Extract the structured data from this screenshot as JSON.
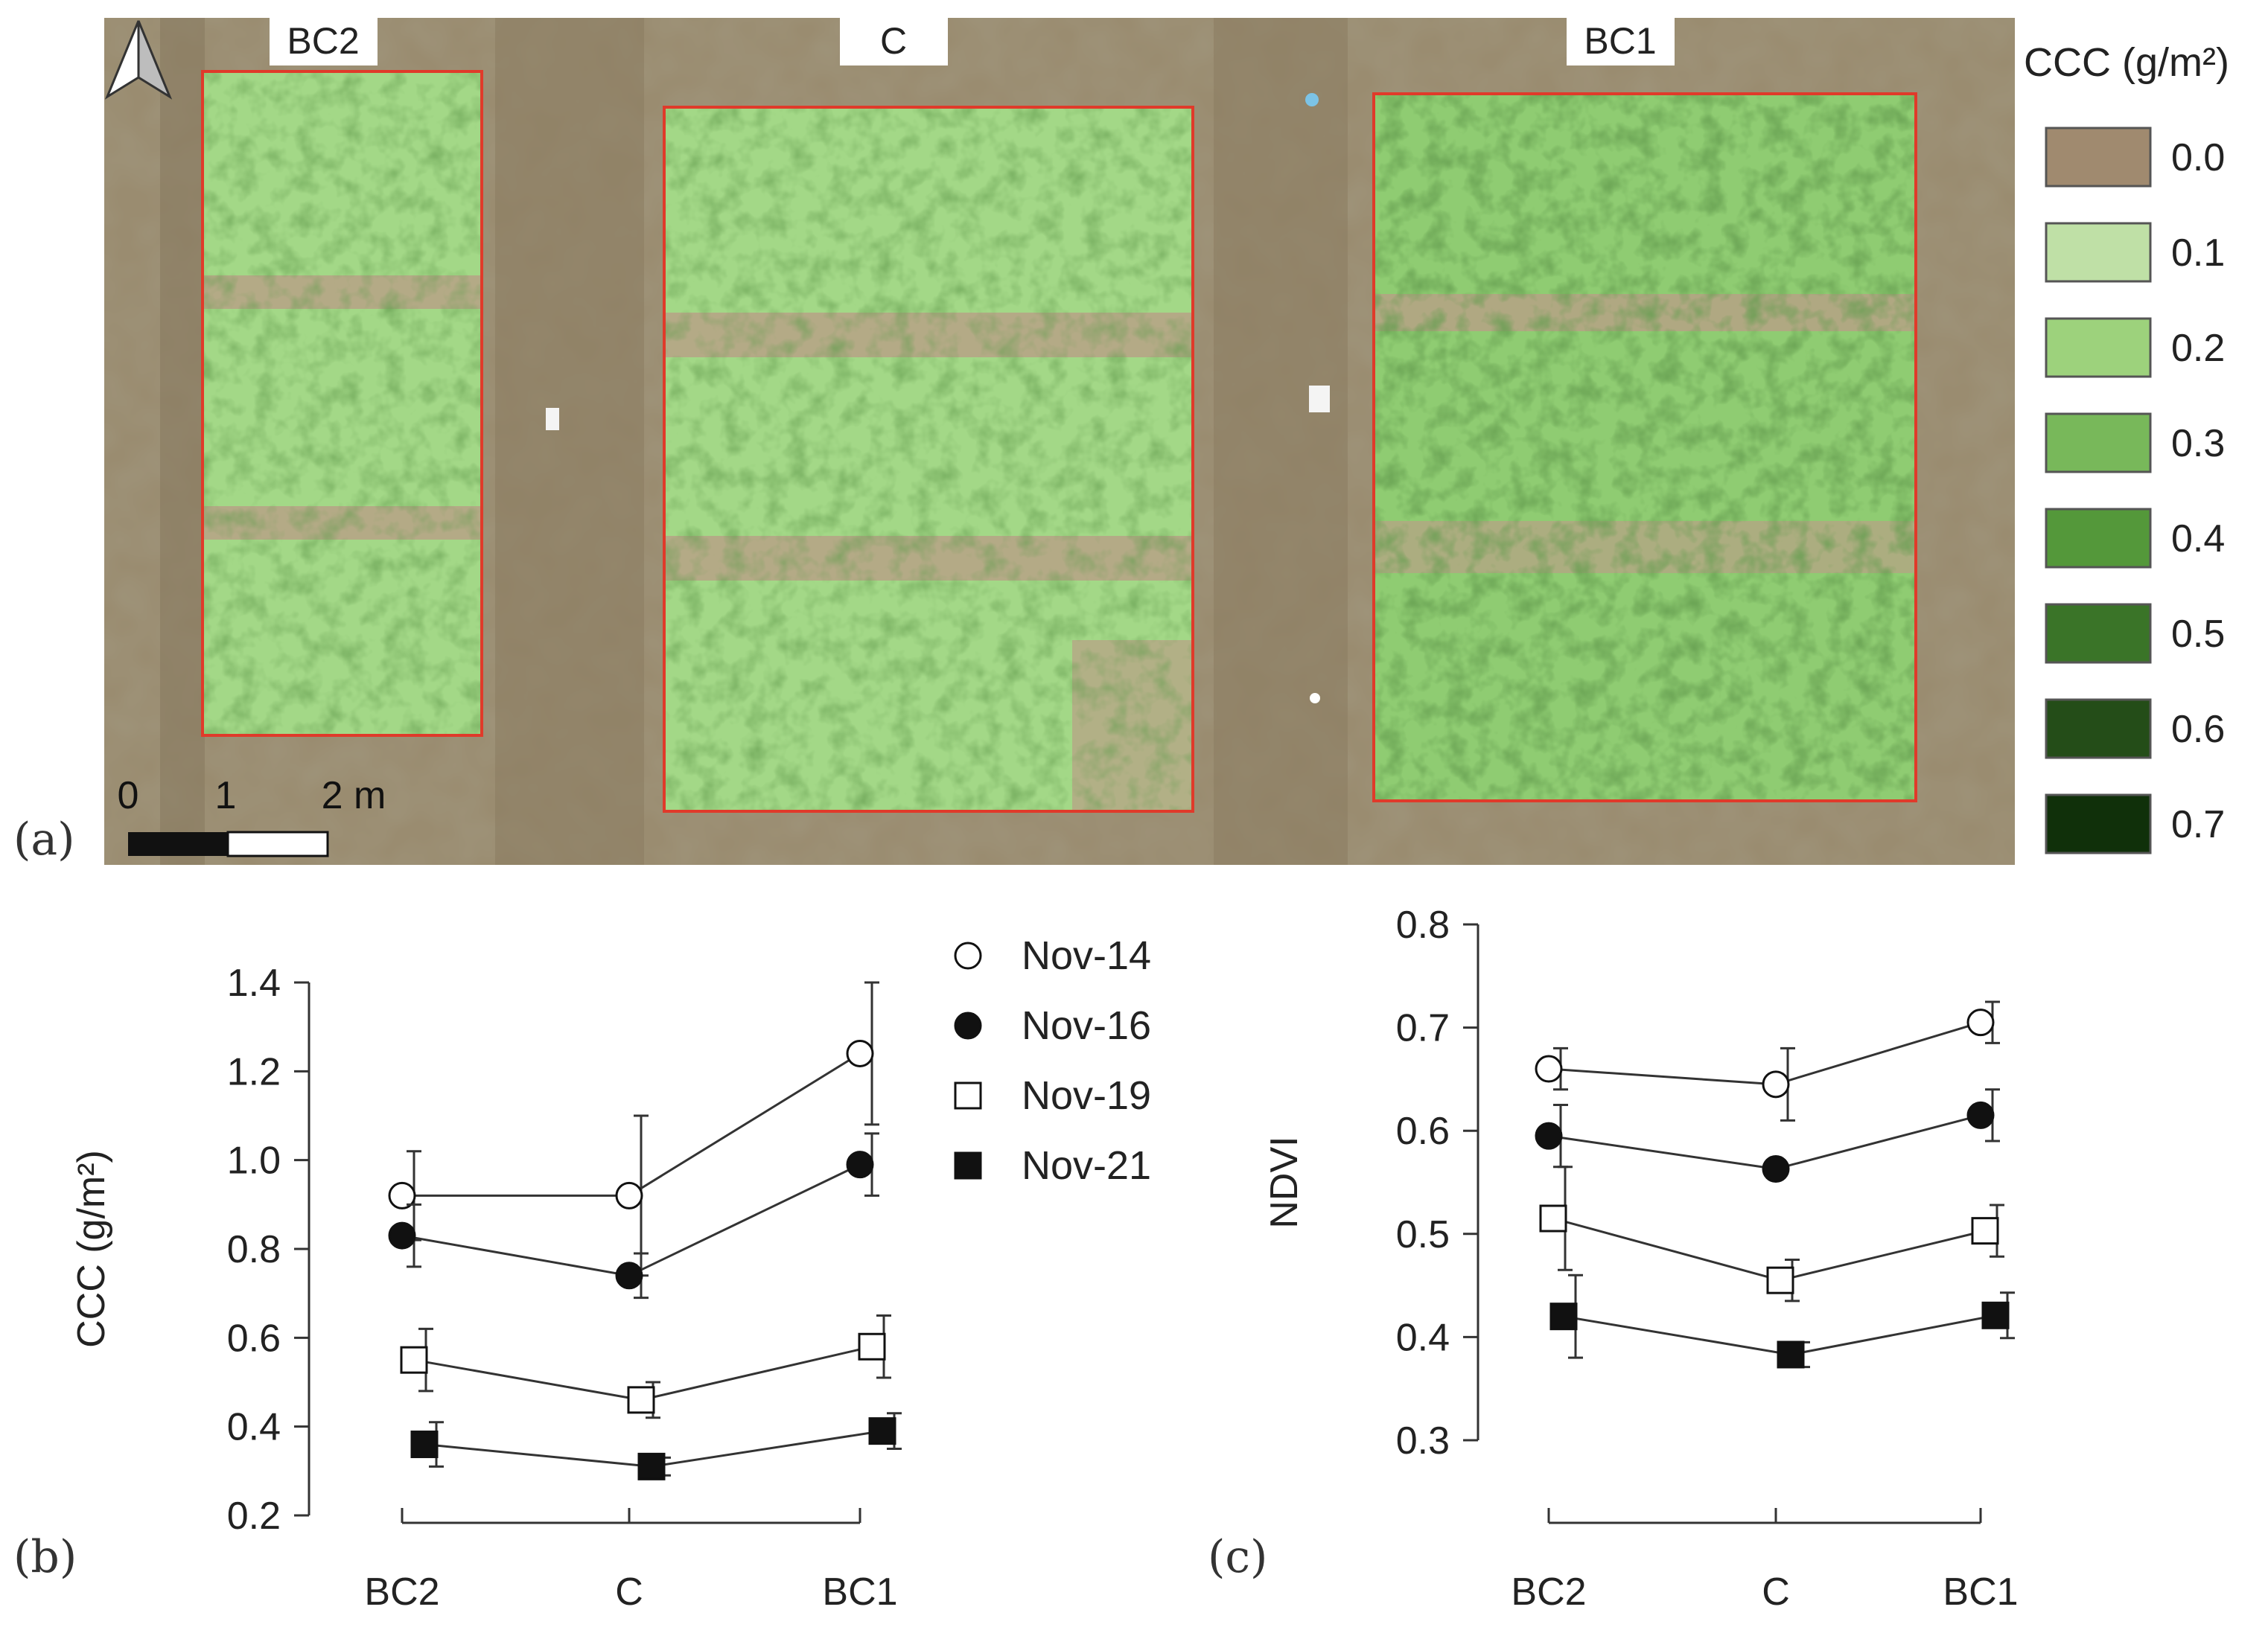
{
  "panel_a": {
    "tag": "(a)",
    "plots": [
      {
        "label": "BC2"
      },
      {
        "label": "C"
      },
      {
        "label": "BC1"
      }
    ],
    "north_arrow": "north-arrow-icon",
    "scalebar": {
      "labels": [
        "0",
        "1",
        "2 m"
      ]
    },
    "colorbar": {
      "title": "CCC (g/m²)",
      "entries": [
        {
          "label": "0.0",
          "color": "#a08a6f"
        },
        {
          "label": "0.1",
          "color": "#bfe0a6"
        },
        {
          "label": "0.2",
          "color": "#9dd27c"
        },
        {
          "label": "0.3",
          "color": "#78b85a"
        },
        {
          "label": "0.4",
          "color": "#54983a"
        },
        {
          "label": "0.5",
          "color": "#3a7428"
        },
        {
          "label": "0.6",
          "color": "#244d18"
        },
        {
          "label": "0.7",
          "color": "#10300a"
        }
      ]
    }
  },
  "legend": {
    "entries": [
      {
        "label": "Nov-14",
        "marker": "open-circle"
      },
      {
        "label": "Nov-16",
        "marker": "filled-circle"
      },
      {
        "label": "Nov-19",
        "marker": "open-square"
      },
      {
        "label": "Nov-21",
        "marker": "filled-square"
      }
    ]
  },
  "chart_data": [
    {
      "panel": "(b)",
      "type": "line",
      "categories": [
        "BC2",
        "C",
        "BC1"
      ],
      "ylabel": "CCC (g/m²)",
      "xlabel": "",
      "ylim": [
        0.2,
        1.4
      ],
      "yticks": [
        "0.2",
        "0.4",
        "0.6",
        "0.8",
        "1.0",
        "1.2",
        "1.4"
      ],
      "grid": false,
      "series": [
        {
          "name": "Nov-14",
          "marker": "open-circle",
          "values": [
            0.92,
            0.92,
            1.24
          ],
          "err": [
            0.1,
            0.18,
            0.16
          ]
        },
        {
          "name": "Nov-16",
          "marker": "filled-circle",
          "values": [
            0.83,
            0.74,
            0.99
          ],
          "err": [
            0.07,
            0.05,
            0.07
          ]
        },
        {
          "name": "Nov-19",
          "marker": "open-square",
          "values": [
            0.55,
            0.46,
            0.58
          ],
          "err": [
            0.07,
            0.04,
            0.07
          ]
        },
        {
          "name": "Nov-21",
          "marker": "filled-square",
          "values": [
            0.36,
            0.31,
            0.39
          ],
          "err": [
            0.05,
            0.02,
            0.04
          ]
        }
      ]
    },
    {
      "panel": "(c)",
      "type": "line",
      "categories": [
        "BC2",
        "C",
        "BC1"
      ],
      "ylabel": "NDVI",
      "xlabel": "",
      "ylim": [
        0.3,
        0.8
      ],
      "yticks": [
        "0.3",
        "0.4",
        "0.5",
        "0.6",
        "0.7",
        "0.8"
      ],
      "grid": false,
      "series": [
        {
          "name": "Nov-14",
          "marker": "open-circle",
          "values": [
            0.66,
            0.645,
            0.705
          ],
          "err": [
            0.02,
            0.035,
            0.02
          ]
        },
        {
          "name": "Nov-16",
          "marker": "filled-circle",
          "values": [
            0.595,
            0.563,
            0.615
          ],
          "err": [
            0.03,
            0.0,
            0.025
          ]
        },
        {
          "name": "Nov-19",
          "marker": "open-square",
          "values": [
            0.515,
            0.455,
            0.503
          ],
          "err": [
            0.05,
            0.02,
            0.025
          ]
        },
        {
          "name": "Nov-21",
          "marker": "filled-square",
          "values": [
            0.42,
            0.383,
            0.421
          ],
          "err": [
            0.04,
            0.012,
            0.022
          ]
        }
      ]
    }
  ]
}
